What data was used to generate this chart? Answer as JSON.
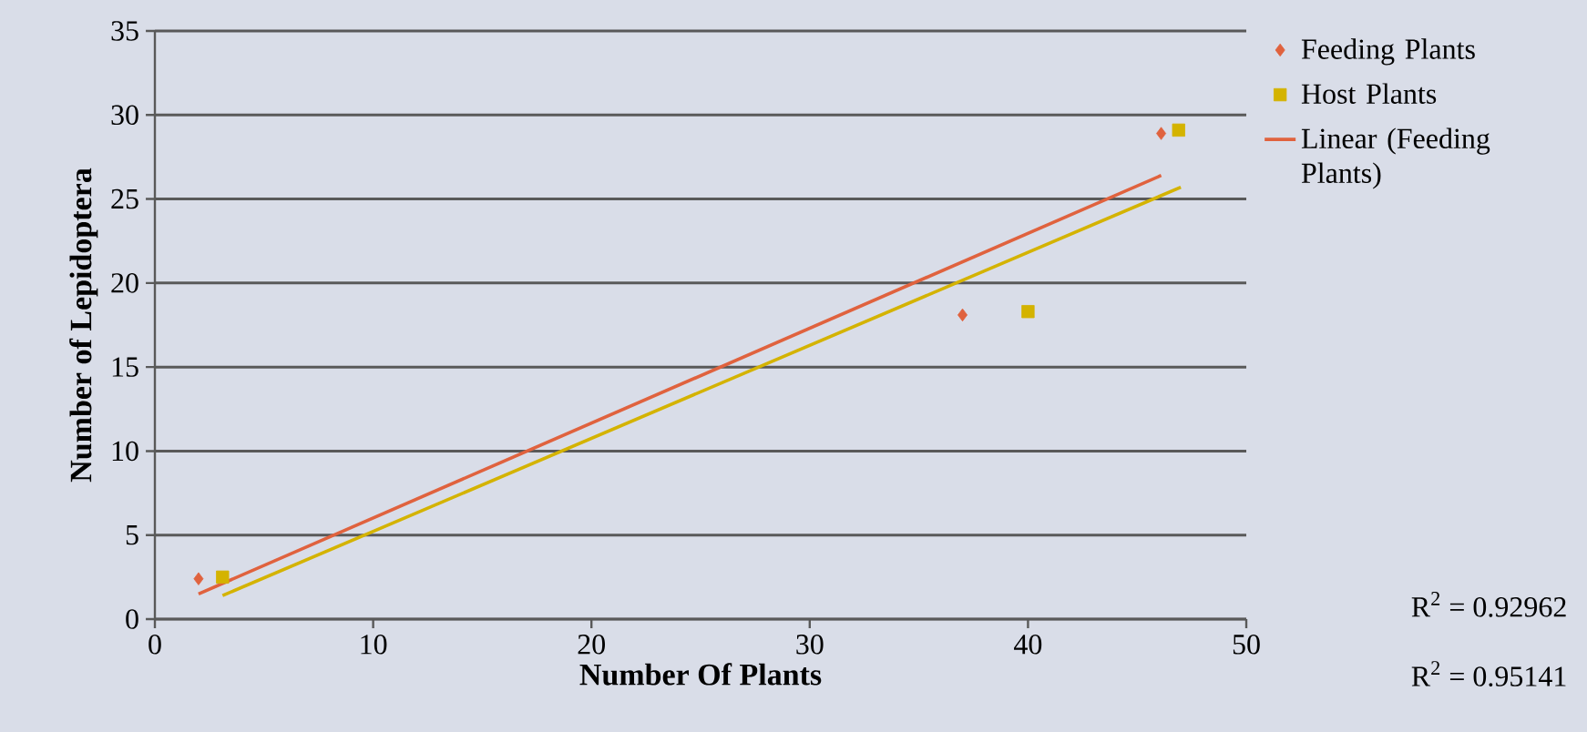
{
  "chart_data": {
    "type": "scatter",
    "xlabel": "Number Of Plants",
    "ylabel": "Number of Lepidoptera",
    "xlim": [
      0,
      50
    ],
    "xticks": [
      0,
      10,
      20,
      30,
      40,
      50
    ],
    "ylim": [
      0,
      35
    ],
    "yticks": [
      0,
      5,
      10,
      15,
      20,
      25,
      30,
      35
    ],
    "grid": "y",
    "legend": "top right",
    "series": [
      {
        "name": "Feeding Plants",
        "color": "#e0623e",
        "marker": "diamond",
        "x": [
          2,
          37,
          46.1
        ],
        "values": [
          2.4,
          18.1,
          28.9
        ]
      },
      {
        "name": "Host Plants",
        "color": "#d4b300",
        "marker": "square",
        "x": [
          3.1,
          40,
          46.9
        ],
        "values": [
          2.5,
          18.3,
          29.1
        ]
      },
      {
        "name": "Linear (Feeding Plants)",
        "type": "line",
        "color": "#e0623e",
        "x": [
          2,
          46.1
        ],
        "values": [
          1.5,
          26.4
        ]
      },
      {
        "type": "line",
        "color": "#d4b300",
        "x": [
          3.1,
          47
        ],
        "values": [
          1.4,
          25.7
        ]
      }
    ],
    "annotations": [
      "R$^{2}$ = 0.92962",
      "R$^{2}$ = 0.95141"
    ]
  }
}
